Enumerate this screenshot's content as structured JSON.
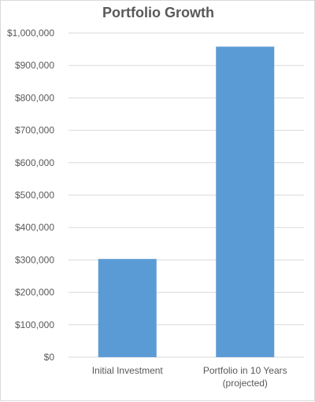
{
  "chart_data": {
    "type": "bar",
    "title": "Portfolio Growth",
    "xlabel": "",
    "ylabel": "",
    "categories": [
      [
        "Initial Investment"
      ],
      [
        "Portfolio in 10 Years",
        "(projected)"
      ]
    ],
    "values": [
      303000,
      958000
    ],
    "ylim": [
      0,
      1000000
    ],
    "yticks": [
      0,
      100000,
      200000,
      300000,
      400000,
      500000,
      600000,
      700000,
      800000,
      900000,
      1000000
    ],
    "ytick_labels": [
      "$0",
      "$100,000",
      "$200,000",
      "$300,000",
      "$400,000",
      "$500,000",
      "$600,000",
      "$700,000",
      "$800,000",
      "$900,000",
      "$1,000,000"
    ],
    "grid": true,
    "legend": "none",
    "bar_color": "#5B9BD5",
    "grid_color": "#d9d9d9",
    "text_color": "#595959"
  }
}
